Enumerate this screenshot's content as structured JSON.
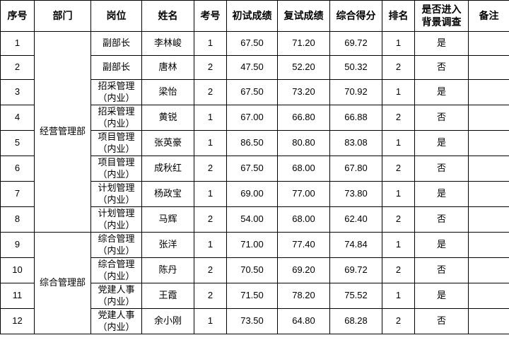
{
  "colors": {
    "background": "#ffffff",
    "border": "#000000",
    "text": "#000000"
  },
  "table": {
    "headers": [
      "序号",
      "部门",
      "岗位",
      "姓名",
      "考号",
      "初试成绩",
      "复试成绩",
      "综合得分",
      "排名",
      "是否进入\n背景调查",
      "备注"
    ],
    "departments": [
      {
        "name": "经营管理部",
        "rowspan": 8
      },
      {
        "name": "综合管理部",
        "rowspan": 4
      }
    ],
    "rows": [
      {
        "no": "1",
        "dept": "经营管理部",
        "post": "副部长",
        "name": "李林峻",
        "exam_no": "1",
        "first_score": "67.50",
        "retest_score": "71.20",
        "overall_score": "69.72",
        "rank": "1",
        "background_check": "是",
        "note": ""
      },
      {
        "no": "2",
        "dept": "经营管理部",
        "post": "副部长",
        "name": "唐林",
        "exam_no": "2",
        "first_score": "47.50",
        "retest_score": "52.20",
        "overall_score": "50.32",
        "rank": "2",
        "background_check": "否",
        "note": ""
      },
      {
        "no": "3",
        "dept": "经营管理部",
        "post": "招采管理\n（内业）",
        "name": "梁怡",
        "exam_no": "2",
        "first_score": "67.50",
        "retest_score": "73.20",
        "overall_score": "70.92",
        "rank": "1",
        "background_check": "是",
        "note": ""
      },
      {
        "no": "4",
        "dept": "经营管理部",
        "post": "招采管理\n（内业）",
        "name": "黄锐",
        "exam_no": "1",
        "first_score": "67.00",
        "retest_score": "66.80",
        "overall_score": "66.88",
        "rank": "2",
        "background_check": "否",
        "note": ""
      },
      {
        "no": "5",
        "dept": "经营管理部",
        "post": "项目管理\n（内业）",
        "name": "张英豪",
        "exam_no": "1",
        "first_score": "86.50",
        "retest_score": "80.80",
        "overall_score": "83.08",
        "rank": "1",
        "background_check": "是",
        "note": ""
      },
      {
        "no": "6",
        "dept": "经营管理部",
        "post": "项目管理\n（内业）",
        "name": "成秋红",
        "exam_no": "2",
        "first_score": "67.50",
        "retest_score": "68.00",
        "overall_score": "67.80",
        "rank": "2",
        "background_check": "否",
        "note": ""
      },
      {
        "no": "7",
        "dept": "经营管理部",
        "post": "计划管理\n（内业）",
        "name": "杨政宝",
        "exam_no": "1",
        "first_score": "69.00",
        "retest_score": "77.00",
        "overall_score": "73.80",
        "rank": "1",
        "background_check": "是",
        "note": ""
      },
      {
        "no": "8",
        "dept": "经营管理部",
        "post": "计划管理\n（内业）",
        "name": "马辉",
        "exam_no": "2",
        "first_score": "54.00",
        "retest_score": "68.00",
        "overall_score": "62.40",
        "rank": "2",
        "background_check": "否",
        "note": ""
      },
      {
        "no": "9",
        "dept": "综合管理部",
        "post": "综合管理\n（内业）",
        "name": "张洋",
        "exam_no": "1",
        "first_score": "71.00",
        "retest_score": "77.40",
        "overall_score": "74.84",
        "rank": "1",
        "background_check": "是",
        "note": ""
      },
      {
        "no": "10",
        "dept": "综合管理部",
        "post": "综合管理\n（内业）",
        "name": "陈丹",
        "exam_no": "2",
        "first_score": "70.50",
        "retest_score": "69.20",
        "overall_score": "69.72",
        "rank": "2",
        "background_check": "否",
        "note": ""
      },
      {
        "no": "11",
        "dept": "综合管理部",
        "post": "党建人事\n（内业）",
        "name": "王霞",
        "exam_no": "2",
        "first_score": "71.50",
        "retest_score": "78.20",
        "overall_score": "75.52",
        "rank": "1",
        "background_check": "是",
        "note": ""
      },
      {
        "no": "12",
        "dept": "综合管理部",
        "post": "党建人事\n（内业）",
        "name": "余小刚",
        "exam_no": "1",
        "first_score": "73.50",
        "retest_score": "64.80",
        "overall_score": "68.28",
        "rank": "2",
        "background_check": "否",
        "note": ""
      }
    ]
  }
}
